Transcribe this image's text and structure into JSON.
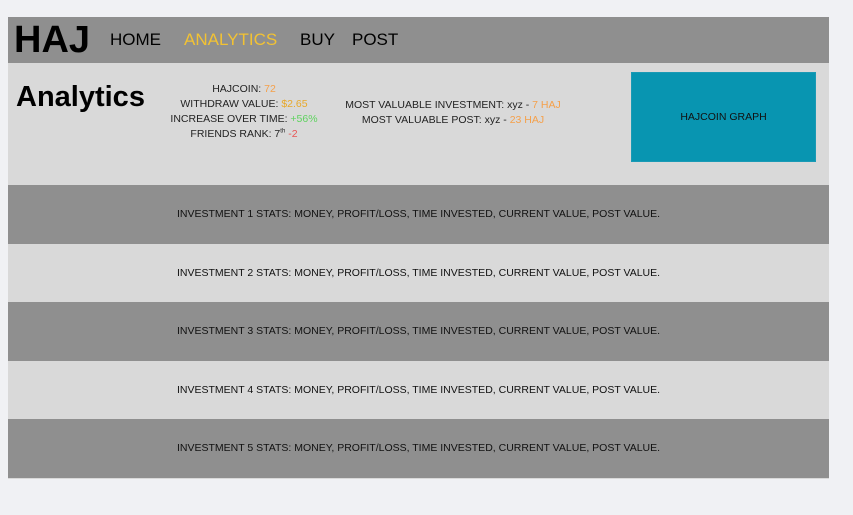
{
  "nav": {
    "logo": "HAJ",
    "links": [
      "HOME",
      "ANALYTICS",
      "BUY",
      "POST"
    ],
    "active_link": "ANALYTICS"
  },
  "header": {
    "title": "Analytics",
    "stats": {
      "hajcoin_label": "HAJCOIN:",
      "hajcoin_value": "72",
      "withdraw_label": "WITHDRAW VALUE:",
      "withdraw_value": "$2.65",
      "increase_label": "INCREASE OVER TIME:",
      "increase_value": "+56%",
      "friends_label": "FRIENDS RANK: 7",
      "friends_sup": "th",
      "friends_change": "-2"
    },
    "valuable": {
      "investment_label": "MOST VALUABLE INVESTMENT: xyz -",
      "investment_value": "7 HAJ",
      "post_label": "MOST VALUABLE POST: xyz -",
      "post_value": "23 HAJ"
    },
    "graph_label": "HAJCOIN GRAPH"
  },
  "investments": [
    "INVESTMENT 1 STATS: MONEY, PROFIT/LOSS, TIME INVESTED, CURRENT VALUE, POST VALUE.",
    "INVESTMENT 2 STATS: MONEY, PROFIT/LOSS, TIME INVESTED, CURRENT VALUE, POST VALUE.",
    "INVESTMENT 3 STATS: MONEY, PROFIT/LOSS, TIME INVESTED, CURRENT VALUE, POST VALUE.",
    "INVESTMENT 4 STATS: MONEY, PROFIT/LOSS, TIME INVESTED, CURRENT VALUE, POST VALUE.",
    "INVESTMENT 5 STATS: MONEY, PROFIT/LOSS, TIME INVESTED, CURRENT VALUE, POST VALUE."
  ],
  "colors": {
    "nav_bg": "#8f8f8f",
    "panel_bg": "#d9d9d9",
    "active_link": "#f2c233",
    "graph_bg": "#0895b1",
    "value_orange": "#f5a04a",
    "value_green": "#5fd35f",
    "value_red": "#e85555"
  }
}
